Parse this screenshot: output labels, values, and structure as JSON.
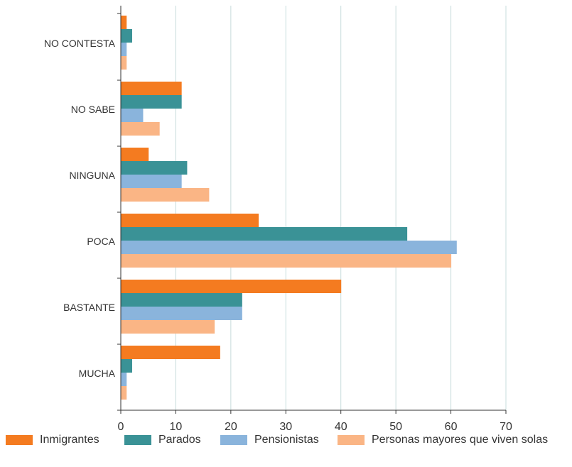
{
  "chart_data": {
    "type": "bar",
    "orientation": "horizontal",
    "categories": [
      "NO CONTESTA",
      "NO SABE",
      "NINGUNA",
      "POCA",
      "BASTANTE",
      "MUCHA"
    ],
    "series": [
      {
        "name": "Inmigrantes",
        "color": "#f47b20",
        "values": [
          1,
          11,
          5,
          25,
          40,
          18
        ]
      },
      {
        "name": "Parados",
        "color": "#3a9296",
        "values": [
          2,
          11,
          12,
          52,
          22,
          2
        ]
      },
      {
        "name": "Pensionistas",
        "color": "#8ab4dc",
        "values": [
          1,
          4,
          11,
          61,
          22,
          1
        ]
      },
      {
        "name": "Personas mayores que viven solas",
        "color": "#fab585",
        "values": [
          1,
          7,
          16,
          60,
          17,
          1
        ]
      }
    ],
    "xlim": [
      0,
      70
    ],
    "xticks": [
      "0",
      "10",
      "20",
      "30",
      "40",
      "50",
      "60",
      "70"
    ],
    "grid": true,
    "legend_position": "bottom",
    "title": "",
    "xlabel": "",
    "ylabel": ""
  }
}
